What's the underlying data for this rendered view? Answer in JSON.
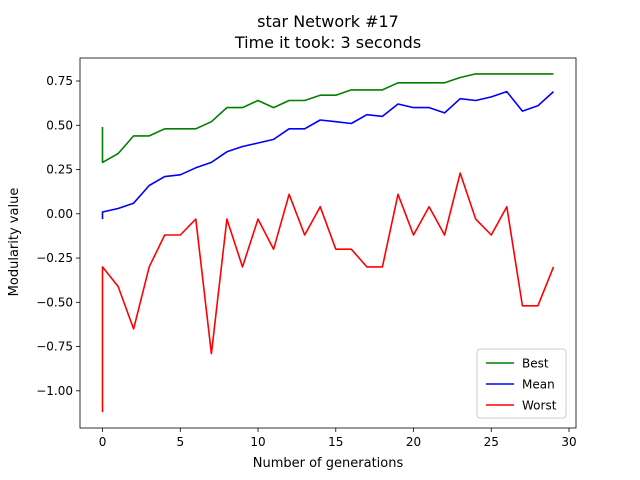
{
  "chart_data": {
    "type": "line",
    "title": "star Network #17",
    "subtitle": "Time it took: 3 seconds",
    "xlabel": "Number of generations",
    "ylabel": "Modularity value",
    "xlim": [
      -1.45,
      30.45
    ],
    "ylim": [
      -1.21,
      0.88
    ],
    "xticks": [
      0,
      5,
      10,
      15,
      20,
      25,
      30
    ],
    "yticks": [
      -1.0,
      -0.75,
      -0.5,
      -0.25,
      0.0,
      0.25,
      0.5,
      0.75
    ],
    "xtick_labels": [
      "0",
      "5",
      "10",
      "15",
      "20",
      "25",
      "30"
    ],
    "ytick_labels": [
      "−1.00",
      "−0.75",
      "−0.50",
      "−0.25",
      "0.00",
      "0.25",
      "0.50",
      "0.75"
    ],
    "grid": false,
    "legend_position": "lower-right",
    "series": [
      {
        "name": "Best",
        "color": "#008000",
        "points": [
          [
            0,
            0.49
          ],
          [
            0,
            0.29
          ],
          [
            1,
            0.34
          ],
          [
            2,
            0.44
          ],
          [
            3,
            0.44
          ],
          [
            4,
            0.48
          ],
          [
            5,
            0.48
          ],
          [
            6,
            0.48
          ],
          [
            7,
            0.52
          ],
          [
            8,
            0.6
          ],
          [
            9,
            0.6
          ],
          [
            10,
            0.64
          ],
          [
            11,
            0.6
          ],
          [
            12,
            0.64
          ],
          [
            13,
            0.64
          ],
          [
            14,
            0.67
          ],
          [
            15,
            0.67
          ],
          [
            16,
            0.7
          ],
          [
            17,
            0.7
          ],
          [
            18,
            0.7
          ],
          [
            19,
            0.74
          ],
          [
            20,
            0.74
          ],
          [
            21,
            0.74
          ],
          [
            22,
            0.74
          ],
          [
            23,
            0.77
          ],
          [
            24,
            0.79
          ],
          [
            25,
            0.79
          ],
          [
            26,
            0.79
          ],
          [
            27,
            0.79
          ],
          [
            28,
            0.79
          ],
          [
            29,
            0.79
          ]
        ]
      },
      {
        "name": "Mean",
        "color": "#0000ff",
        "points": [
          [
            0,
            -0.03
          ],
          [
            0,
            0.01
          ],
          [
            1,
            0.03
          ],
          [
            2,
            0.06
          ],
          [
            3,
            0.16
          ],
          [
            4,
            0.21
          ],
          [
            5,
            0.22
          ],
          [
            6,
            0.26
          ],
          [
            7,
            0.29
          ],
          [
            8,
            0.35
          ],
          [
            9,
            0.38
          ],
          [
            10,
            0.4
          ],
          [
            11,
            0.42
          ],
          [
            12,
            0.48
          ],
          [
            13,
            0.48
          ],
          [
            14,
            0.53
          ],
          [
            15,
            0.52
          ],
          [
            16,
            0.51
          ],
          [
            17,
            0.56
          ],
          [
            18,
            0.55
          ],
          [
            19,
            0.62
          ],
          [
            20,
            0.6
          ],
          [
            21,
            0.6
          ],
          [
            22,
            0.57
          ],
          [
            23,
            0.65
          ],
          [
            24,
            0.64
          ],
          [
            25,
            0.66
          ],
          [
            26,
            0.69
          ],
          [
            27,
            0.58
          ],
          [
            28,
            0.61
          ],
          [
            29,
            0.69
          ]
        ]
      },
      {
        "name": "Worst",
        "color": "#ff0000",
        "points": [
          [
            0,
            -1.12
          ],
          [
            0,
            -0.3
          ],
          [
            1,
            -0.41
          ],
          [
            2,
            -0.65
          ],
          [
            3,
            -0.3
          ],
          [
            4,
            -0.12
          ],
          [
            5,
            -0.12
          ],
          [
            6,
            -0.03
          ],
          [
            7,
            -0.79
          ],
          [
            8,
            -0.03
          ],
          [
            9,
            -0.3
          ],
          [
            10,
            -0.03
          ],
          [
            11,
            -0.2
          ],
          [
            12,
            0.11
          ],
          [
            13,
            -0.12
          ],
          [
            14,
            0.04
          ],
          [
            15,
            -0.2
          ],
          [
            16,
            -0.2
          ],
          [
            17,
            -0.3
          ],
          [
            18,
            -0.3
          ],
          [
            19,
            0.11
          ],
          [
            20,
            -0.12
          ],
          [
            21,
            0.04
          ],
          [
            22,
            -0.12
          ],
          [
            23,
            0.23
          ],
          [
            24,
            -0.03
          ],
          [
            25,
            -0.12
          ],
          [
            26,
            0.04
          ],
          [
            27,
            -0.52
          ],
          [
            28,
            -0.52
          ],
          [
            29,
            -0.3
          ]
        ]
      }
    ]
  }
}
